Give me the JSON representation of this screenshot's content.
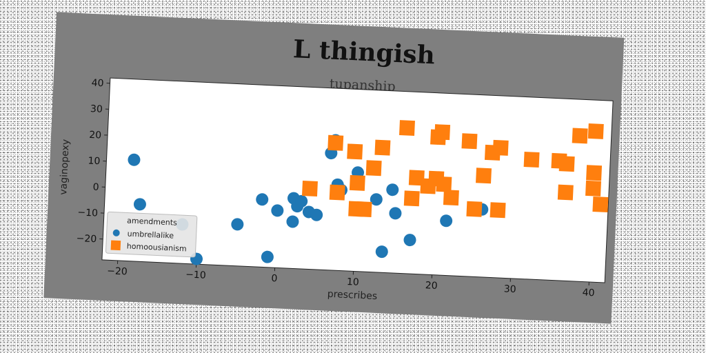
{
  "chart_data": {
    "type": "scatter",
    "title": "L thingish",
    "subtitle": "tupanship",
    "xlabel": "prescribes",
    "ylabel": "vaginopexy",
    "xlim": [
      -22,
      42
    ],
    "ylim": [
      -28,
      42
    ],
    "xticks": [
      -20,
      -10,
      0,
      10,
      20,
      30,
      40
    ],
    "yticks": [
      -20,
      -10,
      0,
      10,
      20,
      30,
      40
    ],
    "grid": false,
    "legend": {
      "title": "amendments",
      "position": "lower-left"
    },
    "series": [
      {
        "name": "umbrellalike",
        "marker": "circle",
        "color": "#1f77b4",
        "points": [
          [
            -18.5,
            11
          ],
          [
            -17.5,
            -6
          ],
          [
            -12,
            -13
          ],
          [
            -10,
            -26
          ],
          [
            -5,
            -12
          ],
          [
            -2,
            -2
          ],
          [
            -1,
            -24
          ],
          [
            0,
            -6
          ],
          [
            2,
            -1
          ],
          [
            2,
            -10
          ],
          [
            2.5,
            -4
          ],
          [
            3,
            -2
          ],
          [
            4,
            -6
          ],
          [
            5,
            -7
          ],
          [
            6.5,
            17
          ],
          [
            7,
            22
          ],
          [
            7.5,
            5
          ],
          [
            8,
            3
          ],
          [
            10,
            10
          ],
          [
            12.5,
            0
          ],
          [
            13.5,
            -20
          ],
          [
            14.5,
            4
          ],
          [
            15,
            -5
          ],
          [
            17,
            -15
          ],
          [
            21.5,
            -7
          ],
          [
            26,
            -2
          ]
        ]
      },
      {
        "name": "homoousianism",
        "marker": "square",
        "color": "#ff7f0e",
        "points": [
          [
            4,
            3
          ],
          [
            7,
            21
          ],
          [
            7.5,
            2
          ],
          [
            9.5,
            18
          ],
          [
            10,
            6
          ],
          [
            10,
            -4
          ],
          [
            11,
            -4
          ],
          [
            12,
            12
          ],
          [
            13,
            20
          ],
          [
            16,
            28
          ],
          [
            17,
            1
          ],
          [
            17.5,
            9
          ],
          [
            19,
            6
          ],
          [
            20,
            25
          ],
          [
            20.5,
            27
          ],
          [
            20,
            9
          ],
          [
            21,
            7
          ],
          [
            22,
            2
          ],
          [
            24,
            24
          ],
          [
            25,
            -2
          ],
          [
            26,
            11
          ],
          [
            27,
            20
          ],
          [
            28,
            22
          ],
          [
            28,
            -2
          ],
          [
            32,
            18
          ],
          [
            35.5,
            18
          ],
          [
            36.5,
            17
          ],
          [
            36.5,
            6
          ],
          [
            38,
            28
          ],
          [
            40,
            30
          ],
          [
            40,
            14
          ],
          [
            40,
            8
          ],
          [
            41,
            2
          ]
        ]
      }
    ]
  }
}
